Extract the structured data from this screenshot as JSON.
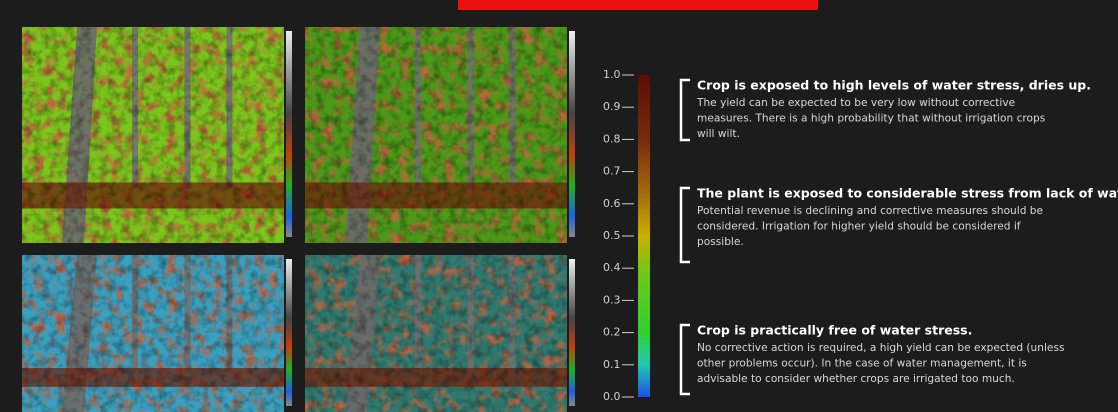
{
  "legend": {
    "ticks": [
      "1.0",
      "0.9",
      "0.8",
      "0.7",
      "0.6",
      "0.5",
      "0.4",
      "0.3",
      "0.2",
      "0.1",
      "0.0"
    ],
    "levels": [
      {
        "heading": "Crop is exposed to high levels of water stress, dries up.",
        "lines": [
          "The yield can be expected to be very low without corrective",
          "measures. There is a high probability that without irrigation crops",
          "will wilt."
        ]
      },
      {
        "heading": "The plant is exposed to considerable stress from lack of water.",
        "lines": [
          "Potential revenue is declining and corrective measures should be",
          "considered. Irrigation for higher yield should be considered if",
          "possible."
        ]
      },
      {
        "heading": "Crop is practically free of water stress.",
        "lines": [
          "No corrective action is required, a high yield can be expected (unless",
          "other problems occur). In the case of water management, it is",
          "advisable to consider whether crops are irrigated too much."
        ]
      }
    ]
  }
}
